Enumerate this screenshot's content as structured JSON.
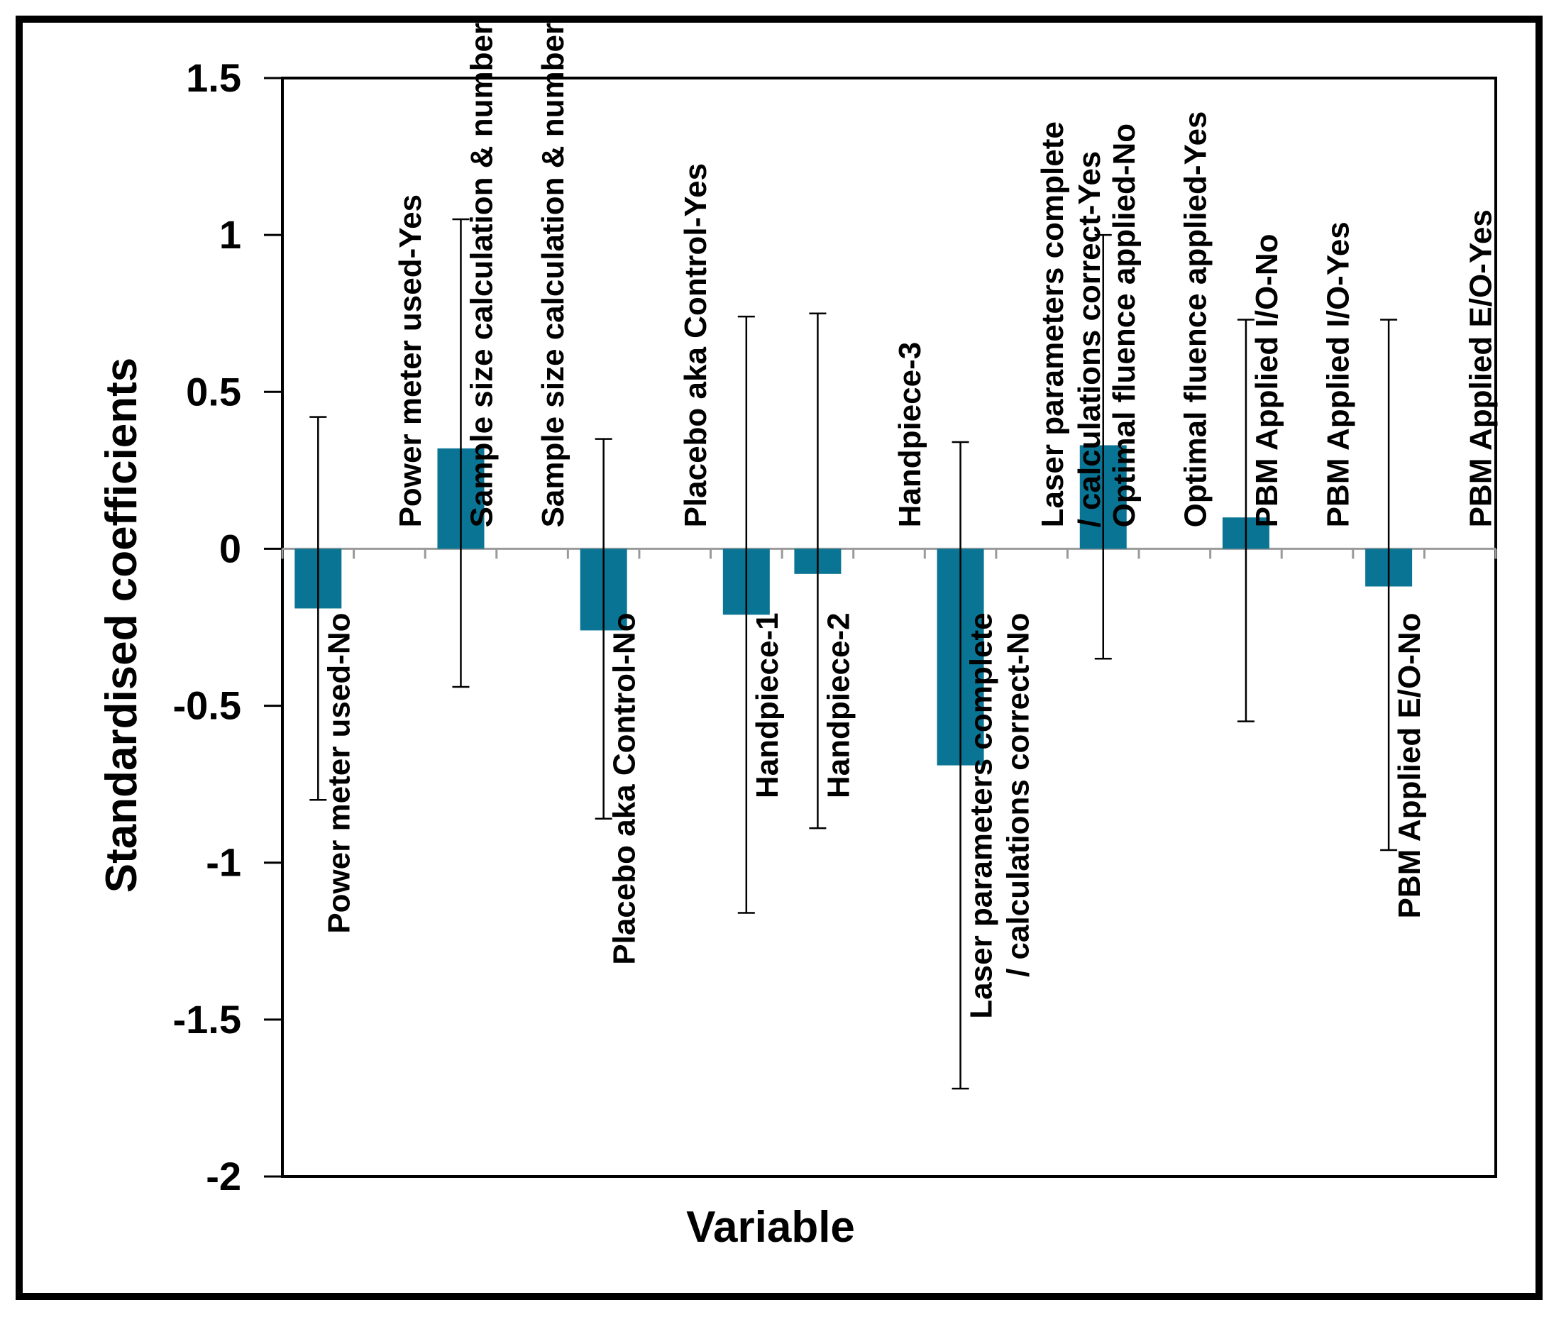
{
  "chart_data": {
    "type": "bar",
    "title": "",
    "xlabel": "Variable",
    "ylabel": "Standardised coefficients",
    "ylim": [
      -2,
      1.5
    ],
    "yticks": [
      1.5,
      1,
      0.5,
      0,
      -0.5,
      -1,
      -1.5,
      -2
    ],
    "ytick_labels": [
      "1.5",
      "1",
      "0.5",
      "0",
      "-0.5",
      "-1",
      "-1.5",
      "-2"
    ],
    "grid": false,
    "bar_color": "#0a7494",
    "categories": [
      "Power meter used-No",
      "Power meter used-Yes",
      "Sample size calculation & number-No",
      "Sample size calculation & number-Yes",
      "Placebo aka Control-No",
      "Placebo aka Control-Yes",
      "Handpiece-1",
      "Handpiece-2",
      "Handpiece-3",
      "Laser parameters complete / calculations correct-No",
      "Laser parameters complete / calculations correct-Yes",
      "Optimal fluence applied-No",
      "Optimal fluence applied-Yes",
      "PBM Applied I/O-No",
      "PBM Applied I/O-Yes",
      "PBM Applied  E/O-No",
      "PBM Applied  E/O-Yes"
    ],
    "series": [
      {
        "name": "Standardised coefficients",
        "values": [
          -0.19,
          0,
          0.32,
          0,
          -0.26,
          0,
          -0.21,
          -0.08,
          0,
          -0.69,
          0,
          0.33,
          0,
          0.1,
          0,
          -0.12,
          0
        ],
        "error_low": [
          -0.8,
          null,
          -0.44,
          null,
          -0.86,
          null,
          -1.16,
          -0.89,
          null,
          -1.72,
          null,
          -0.35,
          null,
          -0.55,
          null,
          -0.96,
          null
        ],
        "error_high": [
          0.42,
          null,
          1.05,
          null,
          0.35,
          null,
          0.74,
          0.75,
          null,
          0.34,
          null,
          1.0,
          null,
          0.73,
          null,
          0.73,
          null
        ]
      }
    ]
  }
}
